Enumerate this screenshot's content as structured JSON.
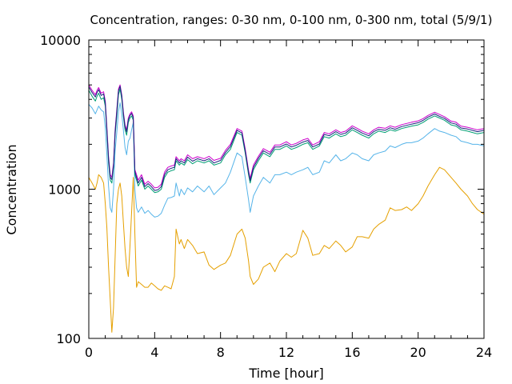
{
  "chart_data": {
    "type": "line",
    "title": "Concentration, ranges: 0-30 nm, 0-100 nm, 0-300 nm, total (5/9/1)",
    "xlabel": "Time [hour]",
    "ylabel": "Concentration",
    "xlim": [
      0,
      24
    ],
    "ylim": [
      100,
      10000
    ],
    "yscale": "log",
    "x_ticks": [
      "0",
      "4",
      "8",
      "12",
      "16",
      "20",
      "24"
    ],
    "y_ticks": [
      "100",
      "1000",
      "10000"
    ],
    "grid": false,
    "legend": "none",
    "series": [
      {
        "color": "#e5a000",
        "x": [
          0,
          0.2,
          0.4,
          0.5,
          0.6,
          0.75,
          0.9,
          1.0,
          1.1,
          1.2,
          1.3,
          1.4,
          1.5,
          1.6,
          1.7,
          1.8,
          1.9,
          2.0,
          2.1,
          2.2,
          2.3,
          2.4,
          2.5,
          2.6,
          2.7,
          2.8,
          2.9,
          3.0,
          3.2,
          3.4,
          3.6,
          3.8,
          4.0,
          4.2,
          4.4,
          4.6,
          4.8,
          5.0,
          5.2,
          5.3,
          5.5,
          5.6,
          5.8,
          6.0,
          6.3,
          6.6,
          7.0,
          7.3,
          7.6,
          8.0,
          8.3,
          8.6,
          9.0,
          9.3,
          9.5,
          9.7,
          9.8,
          10.0,
          10.3,
          10.6,
          11.0,
          11.3,
          11.6,
          12.0,
          12.3,
          12.6,
          13.0,
          13.3,
          13.6,
          14.0,
          14.3,
          14.6,
          15.0,
          15.3,
          15.6,
          16.0,
          16.3,
          16.6,
          17.0,
          17.3,
          17.6,
          18.0,
          18.3,
          18.6,
          19.0,
          19.3,
          19.6,
          20.0,
          20.3,
          20.6,
          21.0,
          21.3,
          21.6,
          22.0,
          22.3,
          22.6,
          23.0,
          23.3,
          23.6,
          24.0
        ],
        "values": [
          1200,
          1100,
          1000,
          1100,
          1250,
          1200,
          1100,
          800,
          550,
          300,
          180,
          110,
          160,
          350,
          800,
          1000,
          1100,
          900,
          600,
          400,
          300,
          260,
          420,
          700,
          1200,
          500,
          220,
          240,
          230,
          220,
          220,
          235,
          225,
          215,
          210,
          225,
          220,
          215,
          260,
          540,
          430,
          460,
          400,
          460,
          420,
          370,
          380,
          310,
          290,
          310,
          320,
          360,
          500,
          540,
          470,
          330,
          260,
          230,
          250,
          300,
          320,
          280,
          330,
          370,
          350,
          370,
          530,
          470,
          360,
          370,
          420,
          400,
          450,
          420,
          380,
          410,
          480,
          480,
          470,
          540,
          580,
          620,
          750,
          720,
          730,
          760,
          720,
          800,
          900,
          1050,
          1250,
          1400,
          1350,
          1200,
          1100,
          1000,
          900,
          800,
          730,
          680
        ]
      },
      {
        "color": "#56b4e9",
        "x": [
          0,
          0.2,
          0.4,
          0.5,
          0.6,
          0.75,
          0.9,
          1.0,
          1.1,
          1.2,
          1.3,
          1.4,
          1.5,
          1.6,
          1.7,
          1.8,
          1.9,
          2.0,
          2.1,
          2.2,
          2.3,
          2.4,
          2.5,
          2.6,
          2.7,
          2.8,
          2.9,
          3.0,
          3.2,
          3.4,
          3.6,
          3.8,
          4.0,
          4.2,
          4.4,
          4.6,
          4.8,
          5.0,
          5.2,
          5.3,
          5.5,
          5.6,
          5.8,
          6.0,
          6.3,
          6.6,
          7.0,
          7.3,
          7.6,
          8.0,
          8.3,
          8.6,
          9.0,
          9.3,
          9.5,
          9.7,
          9.8,
          10.0,
          10.3,
          10.6,
          11.0,
          11.3,
          11.6,
          12.0,
          12.3,
          12.6,
          13.0,
          13.3,
          13.6,
          14.0,
          14.3,
          14.6,
          15.0,
          15.3,
          15.6,
          16.0,
          16.3,
          16.6,
          17.0,
          17.3,
          17.6,
          18.0,
          18.3,
          18.6,
          19.0,
          19.3,
          19.6,
          20.0,
          20.3,
          20.6,
          21.0,
          21.3,
          21.6,
          22.0,
          22.3,
          22.6,
          23.0,
          23.3,
          23.6,
          24.0
        ],
        "values": [
          3700,
          3500,
          3200,
          3400,
          3600,
          3400,
          3300,
          2600,
          1700,
          1050,
          750,
          700,
          1000,
          1800,
          2400,
          3300,
          3800,
          3200,
          2500,
          1900,
          1700,
          2100,
          2200,
          2500,
          2800,
          1000,
          750,
          700,
          760,
          690,
          720,
          680,
          650,
          660,
          690,
          780,
          870,
          880,
          900,
          1100,
          900,
          1000,
          920,
          1020,
          960,
          1050,
          960,
          1050,
          920,
          1020,
          1100,
          1300,
          1750,
          1650,
          1200,
          850,
          700,
          900,
          1050,
          1200,
          1100,
          1250,
          1250,
          1300,
          1250,
          1300,
          1350,
          1400,
          1250,
          1300,
          1550,
          1500,
          1700,
          1550,
          1600,
          1750,
          1700,
          1600,
          1550,
          1700,
          1750,
          1800,
          1950,
          1900,
          2000,
          2050,
          2050,
          2100,
          2200,
          2350,
          2550,
          2450,
          2400,
          2300,
          2250,
          2100,
          2050,
          2000,
          2000,
          1950
        ]
      },
      {
        "color": "#009e73",
        "x": [
          0,
          0.2,
          0.4,
          0.5,
          0.6,
          0.75,
          0.9,
          1.0,
          1.1,
          1.2,
          1.3,
          1.4,
          1.5,
          1.6,
          1.7,
          1.8,
          1.9,
          2.0,
          2.1,
          2.2,
          2.3,
          2.4,
          2.5,
          2.6,
          2.7,
          2.8,
          2.9,
          3.0,
          3.2,
          3.4,
          3.6,
          3.8,
          4.0,
          4.2,
          4.4,
          4.6,
          4.8,
          5.0,
          5.2,
          5.3,
          5.5,
          5.6,
          5.8,
          6.0,
          6.3,
          6.6,
          7.0,
          7.3,
          7.6,
          8.0,
          8.3,
          8.6,
          9.0,
          9.3,
          9.5,
          9.7,
          9.8,
          10.0,
          10.3,
          10.6,
          11.0,
          11.3,
          11.6,
          12.0,
          12.3,
          12.6,
          13.0,
          13.3,
          13.6,
          14.0,
          14.3,
          14.6,
          15.0,
          15.3,
          15.6,
          16.0,
          16.3,
          16.6,
          17.0,
          17.3,
          17.6,
          18.0,
          18.3,
          18.6,
          19.0,
          19.3,
          19.6,
          20.0,
          20.3,
          20.6,
          21.0,
          21.3,
          21.6,
          22.0,
          22.3,
          22.6,
          23.0,
          23.3,
          23.6,
          24.0
        ],
        "values": [
          4600,
          4200,
          3900,
          4200,
          4400,
          4000,
          4100,
          3600,
          2400,
          1500,
          1150,
          1100,
          1400,
          2300,
          3100,
          4300,
          4700,
          4000,
          3100,
          2500,
          2300,
          2800,
          3000,
          3100,
          2900,
          1250,
          1150,
          1050,
          1150,
          1000,
          1050,
          1000,
          950,
          960,
          1000,
          1200,
          1300,
          1330,
          1350,
          1550,
          1450,
          1500,
          1450,
          1580,
          1480,
          1550,
          1500,
          1550,
          1450,
          1500,
          1700,
          1850,
          2400,
          2300,
          1750,
          1250,
          1100,
          1350,
          1550,
          1750,
          1650,
          1850,
          1850,
          1950,
          1850,
          1900,
          2000,
          2050,
          1850,
          1950,
          2250,
          2200,
          2350,
          2250,
          2300,
          2500,
          2400,
          2300,
          2200,
          2350,
          2450,
          2400,
          2500,
          2450,
          2550,
          2600,
          2650,
          2700,
          2800,
          2950,
          3100,
          3000,
          2900,
          2700,
          2650,
          2500,
          2450,
          2400,
          2350,
          2400
        ]
      },
      {
        "color": "#cc00cc",
        "x": [
          0,
          0.2,
          0.4,
          0.5,
          0.6,
          0.75,
          0.9,
          1.0,
          1.1,
          1.2,
          1.3,
          1.4,
          1.5,
          1.6,
          1.7,
          1.8,
          1.9,
          2.0,
          2.1,
          2.2,
          2.3,
          2.4,
          2.5,
          2.6,
          2.7,
          2.8,
          2.9,
          3.0,
          3.2,
          3.4,
          3.6,
          3.8,
          4.0,
          4.2,
          4.4,
          4.6,
          4.8,
          5.0,
          5.2,
          5.3,
          5.5,
          5.6,
          5.8,
          6.0,
          6.3,
          6.6,
          7.0,
          7.3,
          7.6,
          8.0,
          8.3,
          8.6,
          9.0,
          9.3,
          9.5,
          9.7,
          9.8,
          10.0,
          10.3,
          10.6,
          11.0,
          11.3,
          11.6,
          12.0,
          12.3,
          12.6,
          13.0,
          13.3,
          13.6,
          14.0,
          14.3,
          14.6,
          15.0,
          15.3,
          15.6,
          16.0,
          16.3,
          16.6,
          17.0,
          17.3,
          17.6,
          18.0,
          18.3,
          18.6,
          19.0,
          19.3,
          19.6,
          20.0,
          20.3,
          20.6,
          21.0,
          21.3,
          21.6,
          22.0,
          22.3,
          22.6,
          23.0,
          23.3,
          23.6,
          24.0
        ],
        "values": [
          5000,
          4600,
          4300,
          4600,
          4800,
          4400,
          4500,
          3900,
          2600,
          1650,
          1250,
          1200,
          1500,
          2500,
          3400,
          4700,
          5000,
          4300,
          3300,
          2700,
          2500,
          3000,
          3200,
          3300,
          3100,
          1350,
          1250,
          1150,
          1250,
          1080,
          1130,
          1080,
          1020,
          1030,
          1080,
          1300,
          1400,
          1430,
          1450,
          1650,
          1550,
          1600,
          1550,
          1700,
          1600,
          1650,
          1600,
          1660,
          1560,
          1610,
          1820,
          2000,
          2550,
          2450,
          1870,
          1340,
          1180,
          1450,
          1660,
          1870,
          1770,
          1980,
          1980,
          2080,
          1980,
          2030,
          2140,
          2190,
          1980,
          2080,
          2400,
          2350,
          2500,
          2400,
          2450,
          2660,
          2560,
          2450,
          2350,
          2500,
          2600,
          2560,
          2660,
          2600,
          2710,
          2760,
          2810,
          2870,
          2970,
          3120,
          3280,
          3170,
          3060,
          2860,
          2810,
          2650,
          2600,
          2550,
          2500,
          2550
        ]
      },
      {
        "color": "#1a237e",
        "x": [
          0,
          0.2,
          0.4,
          0.5,
          0.6,
          0.75,
          0.9,
          1.0,
          1.1,
          1.2,
          1.3,
          1.4,
          1.5,
          1.6,
          1.7,
          1.8,
          1.9,
          2.0,
          2.1,
          2.2,
          2.3,
          2.4,
          2.5,
          2.6,
          2.7,
          2.8,
          2.9,
          3.0,
          3.2,
          3.4,
          3.6,
          3.8,
          4.0,
          4.2,
          4.4,
          4.6,
          4.8,
          5.0,
          5.2,
          5.3,
          5.5,
          5.6,
          5.8,
          6.0,
          6.3,
          6.6,
          7.0,
          7.3,
          7.6,
          8.0,
          8.3,
          8.6,
          9.0,
          9.3,
          9.5,
          9.7,
          9.8,
          10.0,
          10.3,
          10.6,
          11.0,
          11.3,
          11.6,
          12.0,
          12.3,
          12.6,
          13.0,
          13.3,
          13.6,
          14.0,
          14.3,
          14.6,
          15.0,
          15.3,
          15.6,
          16.0,
          16.3,
          16.6,
          17.0,
          17.3,
          17.6,
          18.0,
          18.3,
          18.6,
          19.0,
          19.3,
          19.6,
          20.0,
          20.3,
          20.6,
          21.0,
          21.3,
          21.6,
          22.0,
          22.3,
          22.6,
          23.0,
          23.3,
          23.6,
          24.0
        ],
        "values": [
          4850,
          4450,
          4150,
          4450,
          4650,
          4250,
          4350,
          3800,
          2500,
          1600,
          1200,
          1160,
          1450,
          2420,
          3300,
          4550,
          4900,
          4200,
          3220,
          2620,
          2420,
          2920,
          3120,
          3220,
          3020,
          1310,
          1200,
          1100,
          1200,
          1040,
          1090,
          1040,
          980,
          990,
          1040,
          1250,
          1350,
          1380,
          1400,
          1600,
          1500,
          1550,
          1500,
          1640,
          1540,
          1600,
          1550,
          1600,
          1500,
          1560,
          1760,
          1930,
          2480,
          2380,
          1810,
          1300,
          1140,
          1400,
          1610,
          1810,
          1710,
          1920,
          1920,
          2010,
          1920,
          1970,
          2070,
          2120,
          1920,
          2010,
          2330,
          2280,
          2430,
          2330,
          2380,
          2580,
          2480,
          2380,
          2280,
          2430,
          2520,
          2480,
          2580,
          2520,
          2630,
          2680,
          2730,
          2790,
          2890,
          3040,
          3190,
          3080,
          2980,
          2780,
          2730,
          2570,
          2530,
          2480,
          2430,
          2480
        ]
      }
    ]
  }
}
